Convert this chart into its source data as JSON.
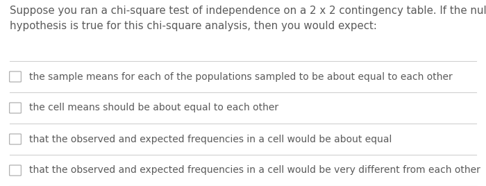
{
  "background_color": "#ffffff",
  "question_line1": "Suppose you ran a chi-square test of independence on a 2 x 2 contingency table. If the null",
  "question_line2": "hypothesis is true for this chi-square analysis, then you would expect:",
  "options": [
    "the sample means for each of the populations sampled to be about equal to each other",
    "the cell means should be about equal to each other",
    "that the observed and expected frequencies in a cell would be about equal",
    "that the observed and expected frequencies in a cell would be very different from each other"
  ],
  "text_color": "#5a5a5a",
  "line_color": "#d0d0d0",
  "checkbox_color": "#b0b0b0",
  "question_fontsize": 10.8,
  "option_fontsize": 10.0,
  "fig_width": 7.0,
  "fig_height": 2.68,
  "dpi": 100
}
